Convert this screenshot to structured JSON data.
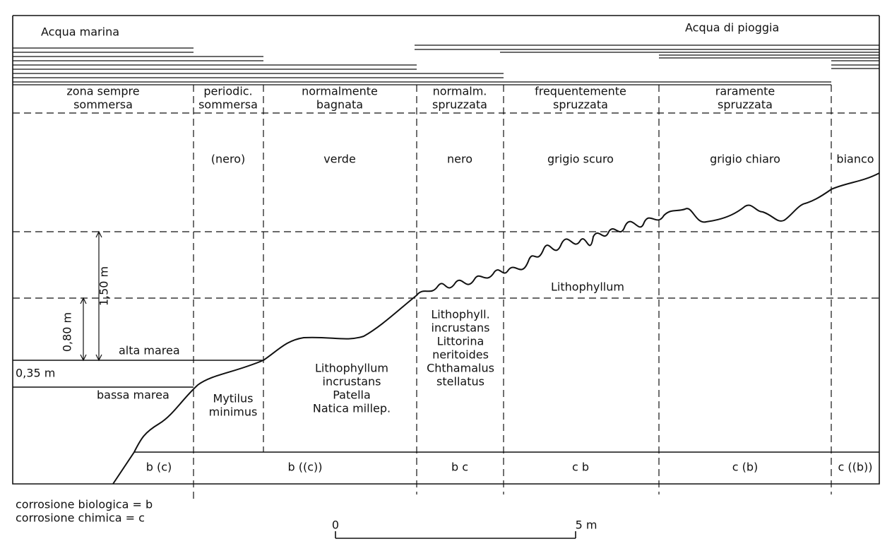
{
  "top_labels": [
    "Acqua marina",
    "Acqua di pioggia"
  ],
  "zone_headers": [
    [
      "zona sempre",
      "sommersa"
    ],
    [
      "periodic.",
      "sommersa"
    ],
    [
      "normalmente",
      "bagnata"
    ],
    [
      "normalm.",
      "spruzzata"
    ],
    [
      "frequentemente",
      "spruzzata"
    ],
    [
      "raramente",
      "spruzzata"
    ]
  ],
  "colors": [
    "(nero)",
    "verde",
    "nero",
    "grigio scuro",
    "grigio chiaro",
    "bianco"
  ],
  "measures": {
    "upper": "1,50 m",
    "lower": "0,80 m",
    "tide_range": "0,35 m",
    "high_tide": "alta marea",
    "low_tide": "bassa marea"
  },
  "organisms": [
    [
      "Mytilus",
      "minimus"
    ],
    [
      "Lithophyllum",
      "incrustans",
      "Patella",
      "Natica millep."
    ],
    [
      "Lithophyll.",
      "incrustans",
      "Littorina",
      "neritoides",
      "Chthamalus",
      "stellatus"
    ],
    [
      "Lithophyllum"
    ]
  ],
  "corrosion": [
    "b (c)",
    "b ((c))",
    "b c",
    "c b",
    "c (b)",
    "c ((b))"
  ],
  "legend": [
    "corrosione biologica = b",
    "corrosione chimica = c"
  ],
  "scale": [
    "0",
    "5 m"
  ]
}
